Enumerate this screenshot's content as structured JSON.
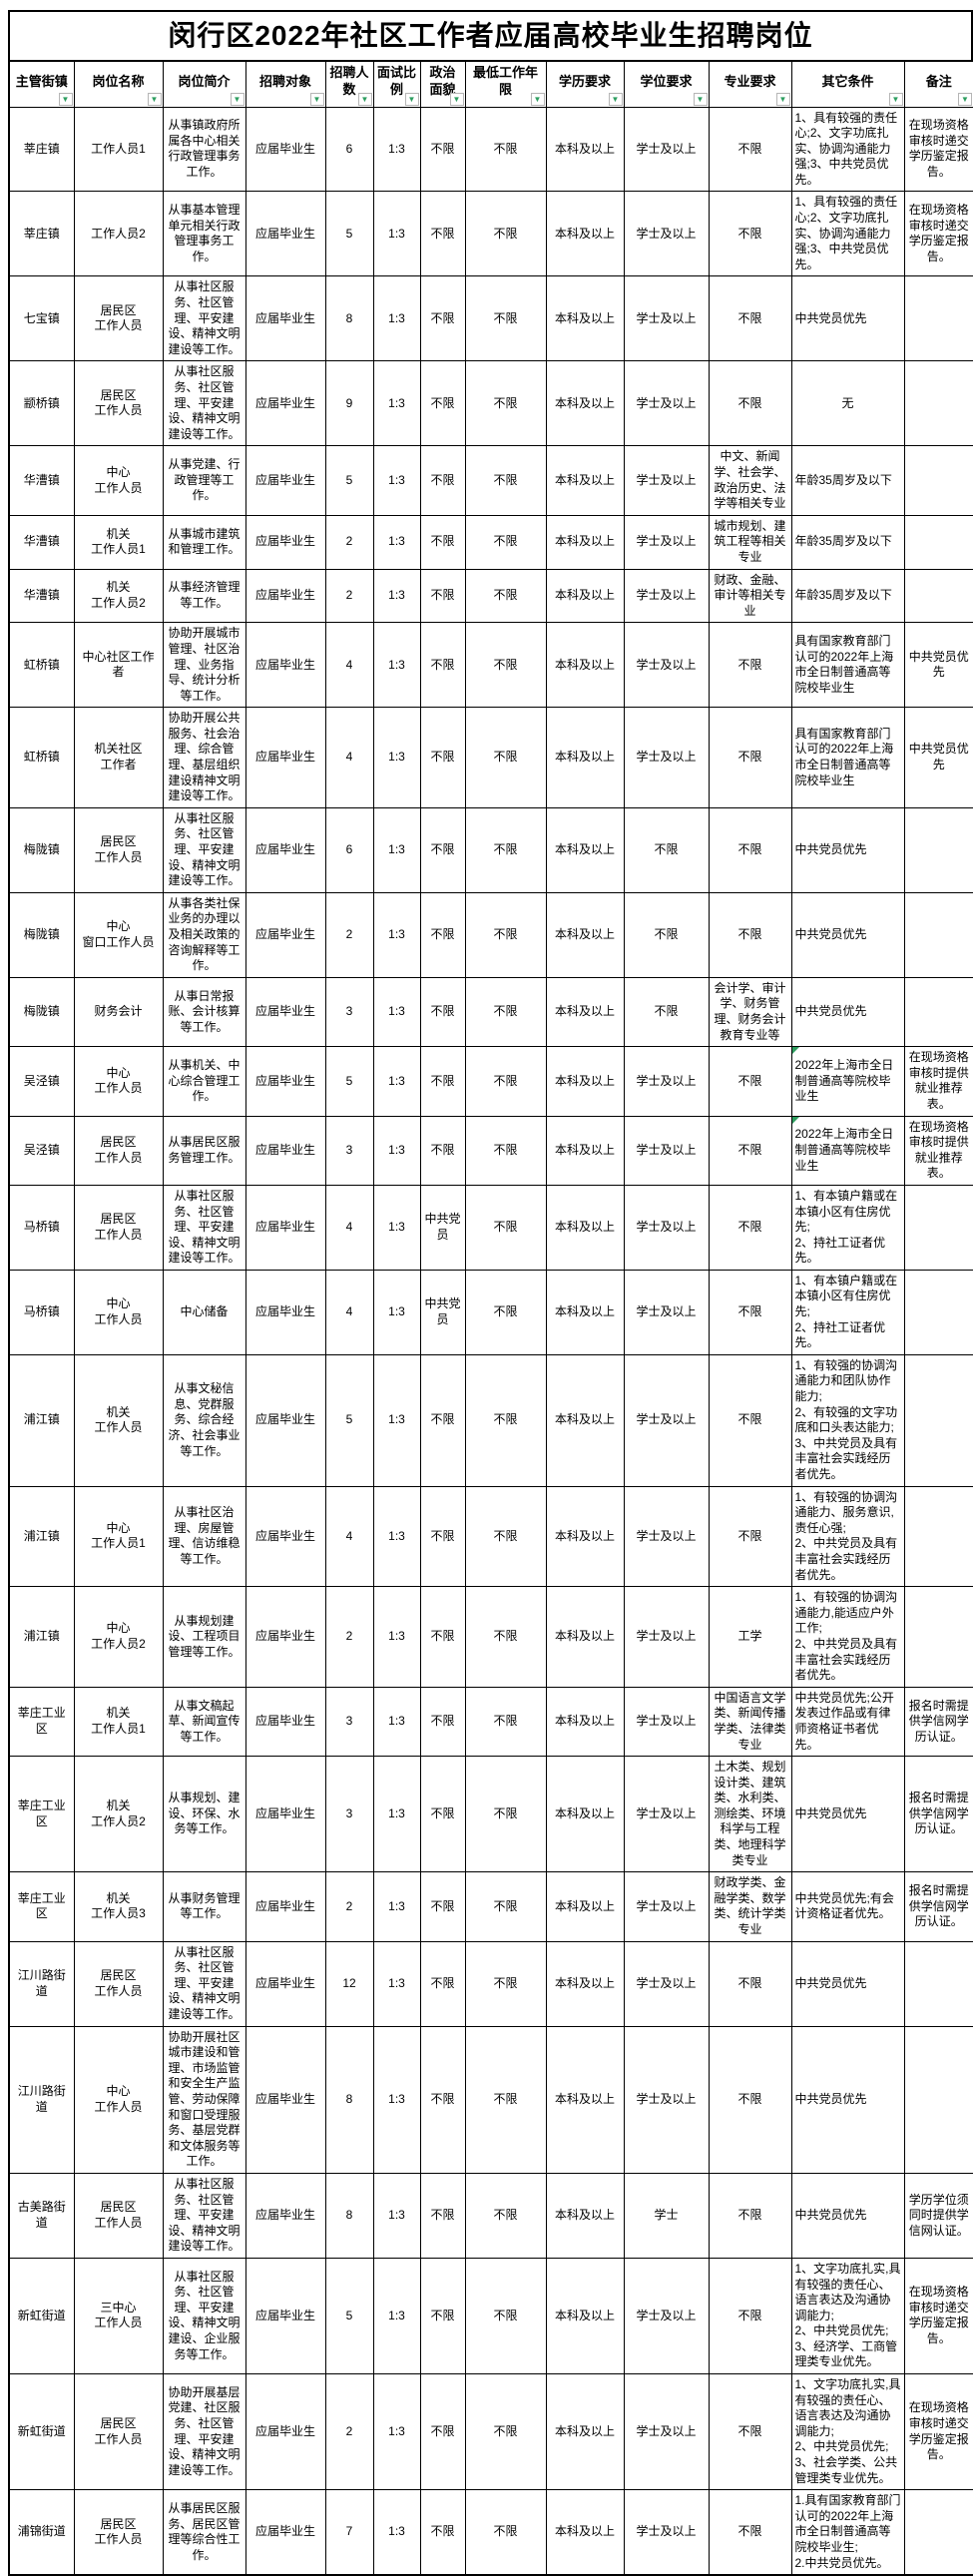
{
  "title": "闵行区2022年社区工作者应届高校毕业生招聘岗位",
  "icons": {
    "filter_dropdown": "▼",
    "comment_marker": "green-corner-triangle"
  },
  "colors": {
    "filter_arrow": "#2E9E60",
    "comment_marker": "#2E9E60",
    "grid_border": "#000000",
    "background": "#FFFFFF",
    "text": "#000000"
  },
  "table": {
    "columns": [
      {
        "key": "town",
        "label": "主管街镇"
      },
      {
        "key": "position",
        "label": "岗位名称"
      },
      {
        "key": "desc",
        "label": "岗位简介"
      },
      {
        "key": "target",
        "label": "招聘对象"
      },
      {
        "key": "count",
        "label": "招聘人数"
      },
      {
        "key": "ratio",
        "label": "面试比例"
      },
      {
        "key": "political",
        "label": "政治面貌"
      },
      {
        "key": "years",
        "label": "最低工作年限"
      },
      {
        "key": "education",
        "label": "学历要求"
      },
      {
        "key": "degree",
        "label": "学位要求"
      },
      {
        "key": "major",
        "label": "专业要求"
      },
      {
        "key": "other",
        "label": "其它条件"
      },
      {
        "key": "remark",
        "label": "备注"
      }
    ],
    "rows": [
      {
        "town": "莘庄镇",
        "position": "工作人员1",
        "desc": "从事镇政府所属各中心相关行政管理事务工作。",
        "target": "应届毕业生",
        "count": "6",
        "ratio": "1:3",
        "political": "不限",
        "years": "不限",
        "education": "本科及以上",
        "degree": "学士及以上",
        "major": "不限",
        "other": "1、具有较强的责任心;2、文字功底扎实、协调沟通能力强;3、中共党员优先。",
        "remark": "在现场资格审核时递交学历鉴定报告。"
      },
      {
        "town": "莘庄镇",
        "position": "工作人员2",
        "desc": "从事基本管理单元相关行政管理事务工作。",
        "target": "应届毕业生",
        "count": "5",
        "ratio": "1:3",
        "political": "不限",
        "years": "不限",
        "education": "本科及以上",
        "degree": "学士及以上",
        "major": "不限",
        "other": "1、具有较强的责任心;2、文字功底扎实、协调沟通能力强;3、中共党员优先。",
        "remark": "在现场资格审核时递交学历鉴定报告。"
      },
      {
        "town": "七宝镇",
        "position": "居民区\n工作人员",
        "desc": "从事社区服务、社区管理、平安建设、精神文明建设等工作。",
        "target": "应届毕业生",
        "count": "8",
        "ratio": "1:3",
        "political": "不限",
        "years": "不限",
        "education": "本科及以上",
        "degree": "学士及以上",
        "major": "不限",
        "other": "中共党员优先",
        "remark": ""
      },
      {
        "town": "颛桥镇",
        "position": "居民区\n工作人员",
        "desc": "从事社区服务、社区管理、平安建设、精神文明建设等工作。",
        "target": "应届毕业生",
        "count": "9",
        "ratio": "1:3",
        "political": "不限",
        "years": "不限",
        "education": "本科及以上",
        "degree": "学士及以上",
        "major": "不限",
        "other": "无",
        "remark": ""
      },
      {
        "town": "华漕镇",
        "position": "中心\n工作人员",
        "desc": "从事党建、行政管理等工作。",
        "target": "应届毕业生",
        "count": "5",
        "ratio": "1:3",
        "political": "不限",
        "years": "不限",
        "education": "本科及以上",
        "degree": "学士及以上",
        "major": "中文、新闻学、社会学、政治历史、法学等相关专业",
        "other": "年龄35周岁及以下",
        "remark": ""
      },
      {
        "town": "华漕镇",
        "position": "机关\n工作人员1",
        "desc": "从事城市建筑和管理工作。",
        "target": "应届毕业生",
        "count": "2",
        "ratio": "1:3",
        "political": "不限",
        "years": "不限",
        "education": "本科及以上",
        "degree": "学士及以上",
        "major": "城市规划、建筑工程等相关专业",
        "other": "年龄35周岁及以下",
        "remark": ""
      },
      {
        "town": "华漕镇",
        "position": "机关\n工作人员2",
        "desc": "从事经济管理等工作。",
        "target": "应届毕业生",
        "count": "2",
        "ratio": "1:3",
        "political": "不限",
        "years": "不限",
        "education": "本科及以上",
        "degree": "学士及以上",
        "major": "财政、金融、审计等相关专业",
        "other": "年龄35周岁及以下",
        "remark": ""
      },
      {
        "town": "虹桥镇",
        "position": "中心社区工作\n者",
        "desc": "协助开展城市管理、社区治理、业务指导、统计分析等工作。",
        "target": "应届毕业生",
        "count": "4",
        "ratio": "1:3",
        "political": "不限",
        "years": "不限",
        "education": "本科及以上",
        "degree": "学士及以上",
        "major": "不限",
        "other": "具有国家教育部门认可的2022年上海市全日制普通高等院校毕业生",
        "remark": "中共党员优先"
      },
      {
        "town": "虹桥镇",
        "position": "机关社区\n工作者",
        "desc": "协助开展公共服务、社会治理、综合管理、基层组织建设精神文明建设等工作。",
        "target": "应届毕业生",
        "count": "4",
        "ratio": "1:3",
        "political": "不限",
        "years": "不限",
        "education": "本科及以上",
        "degree": "学士及以上",
        "major": "不限",
        "other": "具有国家教育部门认可的2022年上海市全日制普通高等院校毕业生",
        "remark": "中共党员优先"
      },
      {
        "town": "梅陇镇",
        "position": "居民区\n工作人员",
        "desc": "从事社区服务、社区管理、平安建设、精神文明建设等工作。",
        "target": "应届毕业生",
        "count": "6",
        "ratio": "1:3",
        "political": "不限",
        "years": "不限",
        "education": "本科及以上",
        "degree": "不限",
        "major": "不限",
        "other": "中共党员优先",
        "remark": ""
      },
      {
        "town": "梅陇镇",
        "position": "中心\n窗口工作人员",
        "desc": "从事各类社保业务的办理以及相关政策的咨询解释等工作。",
        "target": "应届毕业生",
        "count": "2",
        "ratio": "1:3",
        "political": "不限",
        "years": "不限",
        "education": "本科及以上",
        "degree": "不限",
        "major": "不限",
        "other": "中共党员优先",
        "remark": ""
      },
      {
        "town": "梅陇镇",
        "position": "财务会计",
        "desc": "从事日常报账、会计核算等工作。",
        "target": "应届毕业生",
        "count": "3",
        "ratio": "1:3",
        "political": "不限",
        "years": "不限",
        "education": "本科及以上",
        "degree": "不限",
        "major": "会计学、审计学、财务管理、财务会计教育专业等",
        "other": "中共党员优先",
        "remark": ""
      },
      {
        "town": "吴泾镇",
        "position": "中心\n工作人员",
        "desc": "从事机关、中心综合管理工作。",
        "target": "应届毕业生",
        "count": "5",
        "ratio": "1:3",
        "political": "不限",
        "years": "不限",
        "education": "本科及以上",
        "degree": "学士及以上",
        "major": "不限",
        "other": "2022年上海市全日制普通高等院校毕业生",
        "remark": "在现场资格审核时提供就业推荐表。",
        "comment_marker": true
      },
      {
        "town": "吴泾镇",
        "position": "居民区\n工作人员",
        "desc": "从事居民区服务管理工作。",
        "target": "应届毕业生",
        "count": "3",
        "ratio": "1:3",
        "political": "不限",
        "years": "不限",
        "education": "本科及以上",
        "degree": "学士及以上",
        "major": "不限",
        "other": "2022年上海市全日制普通高等院校毕业生",
        "remark": "在现场资格审核时提供就业推荐表。",
        "comment_marker": true
      },
      {
        "town": "马桥镇",
        "position": "居民区\n工作人员",
        "desc": "从事社区服务、社区管理、平安建设、精神文明建设等工作。",
        "target": "应届毕业生",
        "count": "4",
        "ratio": "1:3",
        "political": "中共党员",
        "years": "不限",
        "education": "本科及以上",
        "degree": "学士及以上",
        "major": "不限",
        "other": "1、有本镇户籍或在本镇小区有住房优先;\n2、持社工证者优先。",
        "remark": ""
      },
      {
        "town": "马桥镇",
        "position": "中心\n工作人员",
        "desc": "中心储备",
        "target": "应届毕业生",
        "count": "4",
        "ratio": "1:3",
        "political": "中共党员",
        "years": "不限",
        "education": "本科及以上",
        "degree": "学士及以上",
        "major": "不限",
        "other": "1、有本镇户籍或在本镇小区有住房优先;\n2、持社工证者优先。",
        "remark": ""
      },
      {
        "town": "浦江镇",
        "position": "机关\n工作人员",
        "desc": "从事文秘信息、党群服务、综合经济、社会事业等工作。",
        "target": "应届毕业生",
        "count": "5",
        "ratio": "1:3",
        "political": "不限",
        "years": "不限",
        "education": "本科及以上",
        "degree": "学士及以上",
        "major": "不限",
        "other": "1、有较强的协调沟通能力和团队协作能力;\n2、有较强的文字功底和口头表达能力;\n3、中共党员及具有丰富社会实践经历者优先。",
        "remark": ""
      },
      {
        "town": "浦江镇",
        "position": "中心\n工作人员1",
        "desc": "从事社区治理、房屋管理、信访维稳等工作。",
        "target": "应届毕业生",
        "count": "4",
        "ratio": "1:3",
        "political": "不限",
        "years": "不限",
        "education": "本科及以上",
        "degree": "学士及以上",
        "major": "不限",
        "other": "1、有较强的协调沟通能力、服务意识,责任心强;\n2、中共党员及具有丰富社会实践经历者优先。",
        "remark": ""
      },
      {
        "town": "浦江镇",
        "position": "中心\n工作人员2",
        "desc": "从事规划建设、工程项目管理等工作。",
        "target": "应届毕业生",
        "count": "2",
        "ratio": "1:3",
        "political": "不限",
        "years": "不限",
        "education": "本科及以上",
        "degree": "学士及以上",
        "major": "工学",
        "other": "1、有较强的协调沟通能力,能适应户外工作;\n2、中共党员及具有丰富社会实践经历者优先。",
        "remark": ""
      },
      {
        "town": "莘庄工业区",
        "position": "机关\n工作人员1",
        "desc": "从事文稿起草、新闻宣传等工作。",
        "target": "应届毕业生",
        "count": "3",
        "ratio": "1:3",
        "political": "不限",
        "years": "不限",
        "education": "本科及以上",
        "degree": "学士及以上",
        "major": "中国语言文学类、新闻传播学类、法律类专业",
        "other": "中共党员优先;公开发表过作品或有律师资格证书者优先。",
        "remark": "报名时需提供学信网学历认证。"
      },
      {
        "town": "莘庄工业区",
        "position": "机关\n工作人员2",
        "desc": "从事规划、建设、环保、水务等工作。",
        "target": "应届毕业生",
        "count": "3",
        "ratio": "1:3",
        "political": "不限",
        "years": "不限",
        "education": "本科及以上",
        "degree": "学士及以上",
        "major": "土木类、规划设计类、建筑类、水利类、测绘类、环境科学与工程类、地理科学类专业",
        "other": "中共党员优先",
        "remark": "报名时需提供学信网学历认证。"
      },
      {
        "town": "莘庄工业区",
        "position": "机关\n工作人员3",
        "desc": "从事财务管理等工作。",
        "target": "应届毕业生",
        "count": "2",
        "ratio": "1:3",
        "political": "不限",
        "years": "不限",
        "education": "本科及以上",
        "degree": "学士及以上",
        "major": "财政学类、金融学类、数学类、统计学类专业",
        "other": "中共党员优先;有会计资格证者优先。",
        "remark": "报名时需提供学信网学历认证。"
      },
      {
        "town": "江川路街道",
        "position": "居民区\n工作人员",
        "desc": "从事社区服务、社区管理、平安建设、精神文明建设等工作。",
        "target": "应届毕业生",
        "count": "12",
        "ratio": "1:3",
        "political": "不限",
        "years": "不限",
        "education": "本科及以上",
        "degree": "学士及以上",
        "major": "不限",
        "other": "中共党员优先",
        "remark": ""
      },
      {
        "town": "江川路街道",
        "position": "中心\n工作人员",
        "desc": "协助开展社区城市建设和管理、市场监管和安全生产监管、劳动保障和窗口受理服务、基层党群和文体服务等工作。",
        "target": "应届毕业生",
        "count": "8",
        "ratio": "1:3",
        "political": "不限",
        "years": "不限",
        "education": "本科及以上",
        "degree": "学士及以上",
        "major": "不限",
        "other": "中共党员优先",
        "remark": ""
      },
      {
        "town": "古美路街道",
        "position": "居民区\n工作人员",
        "desc": "从事社区服务、社区管理、平安建设、精神文明建设等工作。",
        "target": "应届毕业生",
        "count": "8",
        "ratio": "1:3",
        "political": "不限",
        "years": "不限",
        "education": "本科及以上",
        "degree": "学士",
        "major": "不限",
        "other": "中共党员优先",
        "remark": "学历学位须同时提供学信网认证。"
      },
      {
        "town": "新虹街道",
        "position": "三中心\n工作人员",
        "desc": "从事社区服务、社区管理、平安建设、精神文明建设、企业服务等工作。",
        "target": "应届毕业生",
        "count": "5",
        "ratio": "1:3",
        "political": "不限",
        "years": "不限",
        "education": "本科及以上",
        "degree": "学士及以上",
        "major": "不限",
        "other": "1、文字功底扎实,具有较强的责任心、语言表达及沟通协调能力;\n2、中共党员优先;\n3、经济学、工商管理类专业优先。",
        "remark": "在现场资格审核时递交学历鉴定报告。"
      },
      {
        "town": "新虹街道",
        "position": "居民区\n工作人员",
        "desc": "协助开展基层党建、社区服务、社区管理、平安建设、精神文明建设等工作。",
        "target": "应届毕业生",
        "count": "2",
        "ratio": "1:3",
        "political": "不限",
        "years": "不限",
        "education": "本科及以上",
        "degree": "学士及以上",
        "major": "不限",
        "other": "1、文字功底扎实,具有较强的责任心、语言表达及沟通协调能力;\n2、中共党员优先;\n3、社会学类、公共管理类专业优先。",
        "remark": "在现场资格审核时递交学历鉴定报告。"
      },
      {
        "town": "浦锦街道",
        "position": "居民区\n工作人员",
        "desc": "从事居民区服务、居民区管理等综合性工作。",
        "target": "应届毕业生",
        "count": "7",
        "ratio": "1:3",
        "political": "不限",
        "years": "不限",
        "education": "本科及以上",
        "degree": "学士及以上",
        "major": "不限",
        "other": "1.具有国家教育部门认可的2022年上海市全日制普通高等院校毕业生;\n2.中共党员优先。",
        "remark": ""
      }
    ]
  }
}
